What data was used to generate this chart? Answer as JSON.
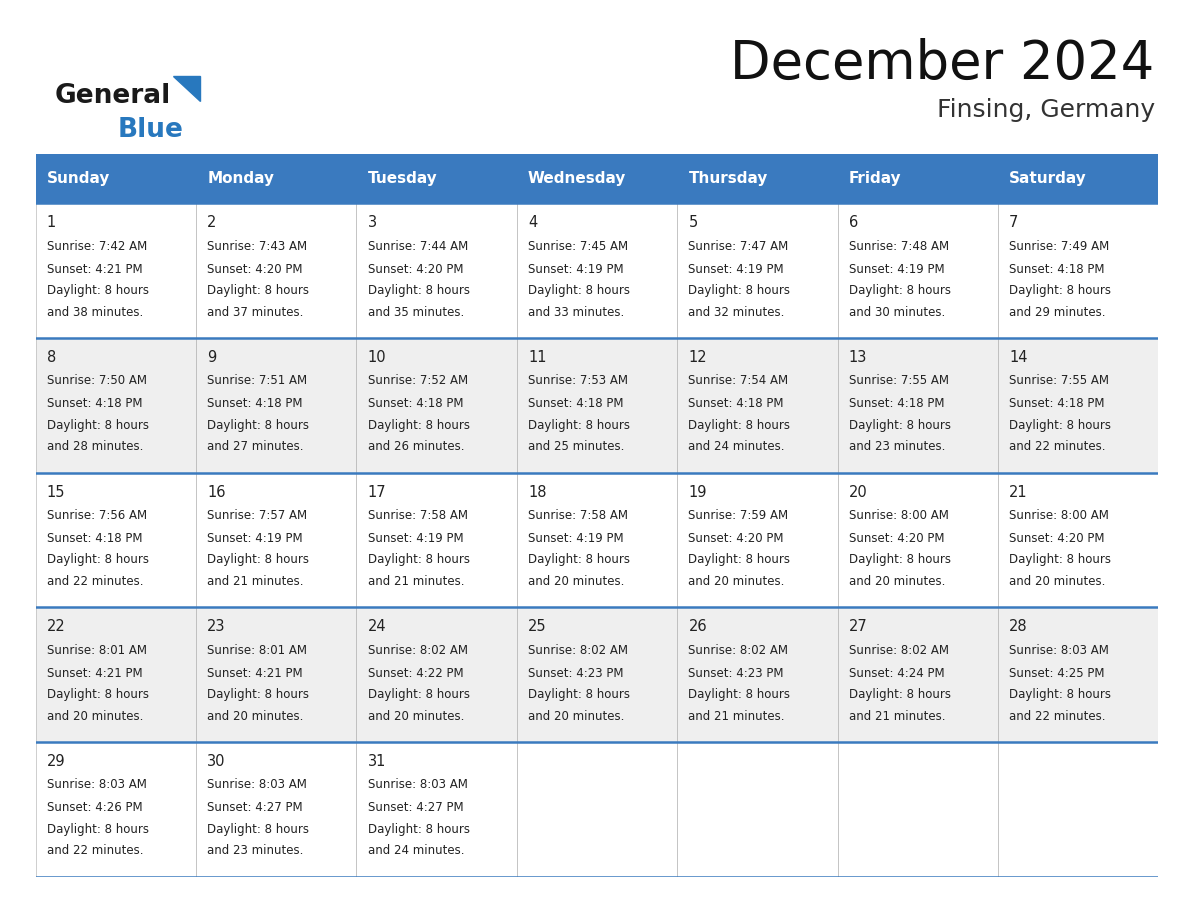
{
  "title": "December 2024",
  "subtitle": "Finsing, Germany",
  "header_bg": "#3a7abf",
  "header_text": "#ffffff",
  "day_headers": [
    "Sunday",
    "Monday",
    "Tuesday",
    "Wednesday",
    "Thursday",
    "Friday",
    "Saturday"
  ],
  "row_bg_even": "#efefef",
  "row_bg_odd": "#ffffff",
  "text_color": "#222222",
  "border_color": "#3a7abf",
  "cell_border_color": "#aaaaaa",
  "days": [
    {
      "day": 1,
      "col": 0,
      "row": 0,
      "sunrise": "7:42 AM",
      "sunset": "4:21 PM",
      "daylight": "8 hours and 38 minutes."
    },
    {
      "day": 2,
      "col": 1,
      "row": 0,
      "sunrise": "7:43 AM",
      "sunset": "4:20 PM",
      "daylight": "8 hours and 37 minutes."
    },
    {
      "day": 3,
      "col": 2,
      "row": 0,
      "sunrise": "7:44 AM",
      "sunset": "4:20 PM",
      "daylight": "8 hours and 35 minutes."
    },
    {
      "day": 4,
      "col": 3,
      "row": 0,
      "sunrise": "7:45 AM",
      "sunset": "4:19 PM",
      "daylight": "8 hours and 33 minutes."
    },
    {
      "day": 5,
      "col": 4,
      "row": 0,
      "sunrise": "7:47 AM",
      "sunset": "4:19 PM",
      "daylight": "8 hours and 32 minutes."
    },
    {
      "day": 6,
      "col": 5,
      "row": 0,
      "sunrise": "7:48 AM",
      "sunset": "4:19 PM",
      "daylight": "8 hours and 30 minutes."
    },
    {
      "day": 7,
      "col": 6,
      "row": 0,
      "sunrise": "7:49 AM",
      "sunset": "4:18 PM",
      "daylight": "8 hours and 29 minutes."
    },
    {
      "day": 8,
      "col": 0,
      "row": 1,
      "sunrise": "7:50 AM",
      "sunset": "4:18 PM",
      "daylight": "8 hours and 28 minutes."
    },
    {
      "day": 9,
      "col": 1,
      "row": 1,
      "sunrise": "7:51 AM",
      "sunset": "4:18 PM",
      "daylight": "8 hours and 27 minutes."
    },
    {
      "day": 10,
      "col": 2,
      "row": 1,
      "sunrise": "7:52 AM",
      "sunset": "4:18 PM",
      "daylight": "8 hours and 26 minutes."
    },
    {
      "day": 11,
      "col": 3,
      "row": 1,
      "sunrise": "7:53 AM",
      "sunset": "4:18 PM",
      "daylight": "8 hours and 25 minutes."
    },
    {
      "day": 12,
      "col": 4,
      "row": 1,
      "sunrise": "7:54 AM",
      "sunset": "4:18 PM",
      "daylight": "8 hours and 24 minutes."
    },
    {
      "day": 13,
      "col": 5,
      "row": 1,
      "sunrise": "7:55 AM",
      "sunset": "4:18 PM",
      "daylight": "8 hours and 23 minutes."
    },
    {
      "day": 14,
      "col": 6,
      "row": 1,
      "sunrise": "7:55 AM",
      "sunset": "4:18 PM",
      "daylight": "8 hours and 22 minutes."
    },
    {
      "day": 15,
      "col": 0,
      "row": 2,
      "sunrise": "7:56 AM",
      "sunset": "4:18 PM",
      "daylight": "8 hours and 22 minutes."
    },
    {
      "day": 16,
      "col": 1,
      "row": 2,
      "sunrise": "7:57 AM",
      "sunset": "4:19 PM",
      "daylight": "8 hours and 21 minutes."
    },
    {
      "day": 17,
      "col": 2,
      "row": 2,
      "sunrise": "7:58 AM",
      "sunset": "4:19 PM",
      "daylight": "8 hours and 21 minutes."
    },
    {
      "day": 18,
      "col": 3,
      "row": 2,
      "sunrise": "7:58 AM",
      "sunset": "4:19 PM",
      "daylight": "8 hours and 20 minutes."
    },
    {
      "day": 19,
      "col": 4,
      "row": 2,
      "sunrise": "7:59 AM",
      "sunset": "4:20 PM",
      "daylight": "8 hours and 20 minutes."
    },
    {
      "day": 20,
      "col": 5,
      "row": 2,
      "sunrise": "8:00 AM",
      "sunset": "4:20 PM",
      "daylight": "8 hours and 20 minutes."
    },
    {
      "day": 21,
      "col": 6,
      "row": 2,
      "sunrise": "8:00 AM",
      "sunset": "4:20 PM",
      "daylight": "8 hours and 20 minutes."
    },
    {
      "day": 22,
      "col": 0,
      "row": 3,
      "sunrise": "8:01 AM",
      "sunset": "4:21 PM",
      "daylight": "8 hours and 20 minutes."
    },
    {
      "day": 23,
      "col": 1,
      "row": 3,
      "sunrise": "8:01 AM",
      "sunset": "4:21 PM",
      "daylight": "8 hours and 20 minutes."
    },
    {
      "day": 24,
      "col": 2,
      "row": 3,
      "sunrise": "8:02 AM",
      "sunset": "4:22 PM",
      "daylight": "8 hours and 20 minutes."
    },
    {
      "day": 25,
      "col": 3,
      "row": 3,
      "sunrise": "8:02 AM",
      "sunset": "4:23 PM",
      "daylight": "8 hours and 20 minutes."
    },
    {
      "day": 26,
      "col": 4,
      "row": 3,
      "sunrise": "8:02 AM",
      "sunset": "4:23 PM",
      "daylight": "8 hours and 21 minutes."
    },
    {
      "day": 27,
      "col": 5,
      "row": 3,
      "sunrise": "8:02 AM",
      "sunset": "4:24 PM",
      "daylight": "8 hours and 21 minutes."
    },
    {
      "day": 28,
      "col": 6,
      "row": 3,
      "sunrise": "8:03 AM",
      "sunset": "4:25 PM",
      "daylight": "8 hours and 22 minutes."
    },
    {
      "day": 29,
      "col": 0,
      "row": 4,
      "sunrise": "8:03 AM",
      "sunset": "4:26 PM",
      "daylight": "8 hours and 22 minutes."
    },
    {
      "day": 30,
      "col": 1,
      "row": 4,
      "sunrise": "8:03 AM",
      "sunset": "4:27 PM",
      "daylight": "8 hours and 23 minutes."
    },
    {
      "day": 31,
      "col": 2,
      "row": 4,
      "sunrise": "8:03 AM",
      "sunset": "4:27 PM",
      "daylight": "8 hours and 24 minutes."
    }
  ]
}
